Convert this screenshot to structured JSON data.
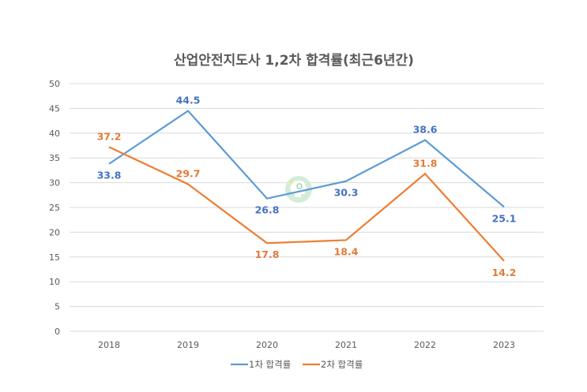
{
  "chart_data": {
    "type": "line",
    "title": "산업안전지도사 1,2차 합격률(최근6년간)",
    "xlabel": "",
    "ylabel": "",
    "categories": [
      "2018",
      "2019",
      "2020",
      "2021",
      "2022",
      "2023"
    ],
    "ylim": [
      0,
      50
    ],
    "yticks": [
      0,
      5,
      10,
      15,
      20,
      25,
      30,
      35,
      40,
      45,
      50
    ],
    "grid": true,
    "legend_position": "bottom",
    "series": [
      {
        "name": "1차 합격률",
        "color": "#5b9bd5",
        "label_color": "#4472c4",
        "values": [
          33.8,
          44.5,
          26.8,
          30.3,
          38.6,
          25.1
        ],
        "label_pos": [
          "below",
          "above",
          "below",
          "below",
          "above",
          "below"
        ]
      },
      {
        "name": "2차 합격률",
        "color": "#ed7d31",
        "label_color": "#e07b39",
        "values": [
          37.2,
          29.7,
          17.8,
          18.4,
          31.8,
          14.2
        ],
        "label_pos": [
          "above",
          "above",
          "below",
          "below",
          "above",
          "below"
        ]
      }
    ]
  },
  "watermark": {
    "icon": "head-gear-lightbulb-icon",
    "color": "#d5ecd9"
  }
}
